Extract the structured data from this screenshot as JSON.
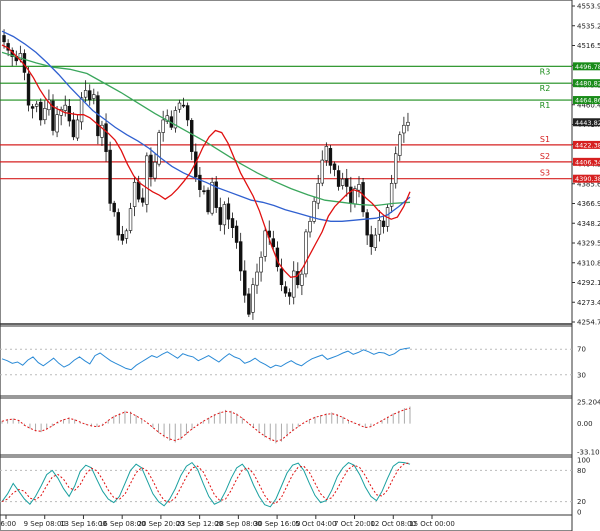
{
  "chart_data": {
    "type": "candlestick",
    "y_ticks": [
      "4553.90",
      "4535.20",
      "4516.50",
      "4497.80",
      "4479.10",
      "4460.40",
      "4441.70",
      "4423.00",
      "4404.30",
      "4385.60",
      "4366.90",
      "4348.20",
      "4329.50",
      "4310.80",
      "4292.10",
      "4273.40",
      "4254.70"
    ],
    "ylim": [
      4254.7,
      4553.9
    ],
    "x_ticks": [
      "16:00",
      "9 Sep 08:00",
      "13 Sep 16:00",
      "16 Sep 08:00",
      "20 Sep 20:00",
      "23 Sep 12:00",
      "28 Sep 08:00",
      "30 Sep 16:00",
      "5 Oct 04:00",
      "7 Oct 20:00",
      "12 Oct 08:00",
      "15 Oct 00:00"
    ],
    "last_price": {
      "value": 4443.82,
      "label": "4443.82"
    },
    "resistance": [
      {
        "name": "R3",
        "value": 4496.78,
        "label": "4496.78"
      },
      {
        "name": "R2",
        "value": 4480.82,
        "label": "4480.82"
      },
      {
        "name": "R1",
        "value": 4464.86,
        "label": "4464.86"
      }
    ],
    "support": [
      {
        "name": "S1",
        "value": 4422.38,
        "label": "4422.38"
      },
      {
        "name": "S2",
        "value": 4406.34,
        "label": "4406.34"
      },
      {
        "name": "S3",
        "value": 4390.38,
        "label": "4390.38"
      }
    ],
    "close_path": [
      4520,
      4512,
      4506,
      4502,
      4509,
      4491,
      4460,
      4457,
      4461,
      4446,
      4457,
      4465,
      4436,
      4451,
      4456,
      4460,
      4445,
      4430,
      4446,
      4467,
      4474,
      4465,
      4470,
      4431,
      4441,
      4416,
      4367,
      4359,
      4337,
      4332,
      4341,
      4362,
      4387,
      4371,
      4368,
      4412,
      4392,
      4406,
      4434,
      4446,
      4450,
      4439,
      4455,
      4462,
      4460,
      4446,
      4416,
      4392,
      4380,
      4378,
      4359,
      4387,
      4363,
      4347,
      4366,
      4352,
      4344,
      4330,
      4303,
      4280,
      4262,
      4290,
      4302,
      4316,
      4341,
      4335,
      4326,
      4307,
      4290,
      4282,
      4279,
      4303,
      4290,
      4300,
      4340,
      4350,
      4369,
      4386,
      4408,
      4421,
      4403,
      4399,
      4383,
      4390,
      4383,
      4367,
      4381,
      4385,
      4359,
      4337,
      4326,
      4337,
      4351,
      4345,
      4363,
      4386,
      4414,
      4432,
      4441,
      4443.82
    ],
    "sma_fast": [
      4517,
      4514,
      4508,
      4502,
      4495,
      4486,
      4475,
      4466,
      4459,
      4456,
      4453,
      4452,
      4451,
      4451,
      4448,
      4443,
      4438,
      4433,
      4427,
      4417,
      4404,
      4393,
      4386,
      4382,
      4378,
      4375,
      4371,
      4375,
      4381,
      4388,
      4396,
      4407,
      4420,
      4430,
      4436,
      4434,
      4424,
      4410,
      4396,
      4385,
      4374,
      4360,
      4343,
      4326,
      4311,
      4303,
      4297,
      4298,
      4307,
      4318,
      4329,
      4340,
      4355,
      4364,
      4370,
      4376,
      4380,
      4378,
      4372,
      4367,
      4360,
      4355,
      4352,
      4354,
      4364,
      4378
    ],
    "sma_mid": [
      4530,
      4525,
      4518,
      4510,
      4500,
      4489,
      4477,
      4466,
      4455,
      4447,
      4439,
      4432,
      4426,
      4419,
      4410,
      4402,
      4396,
      4391,
      4387,
      4382,
      4378,
      4374,
      4370,
      4368,
      4365,
      4361,
      4358,
      4355,
      4352,
      4350,
      4350,
      4351,
      4352,
      4353,
      4356,
      4364,
      4373
    ],
    "sma_slow": [
      4510,
      4505,
      4500,
      4496,
      4494,
      4490,
      4481,
      4472,
      4462,
      4452,
      4443,
      4434,
      4425,
      4415,
      4405,
      4396,
      4388,
      4381,
      4375,
      4370,
      4368,
      4366,
      4365,
      4367,
      4368
    ],
    "rsi": {
      "ticks": [
        "70",
        "30"
      ],
      "ylim": [
        0,
        100
      ],
      "values": [
        55,
        52,
        48,
        50,
        45,
        53,
        58,
        49,
        44,
        50,
        56,
        48,
        42,
        46,
        53,
        58,
        52,
        47,
        60,
        64,
        58,
        52,
        48,
        44,
        40,
        38,
        45,
        50,
        55,
        60,
        57,
        62,
        66,
        61,
        56,
        63,
        60,
        58,
        52,
        56,
        60,
        55,
        50,
        57,
        63,
        58,
        55,
        48,
        51,
        56,
        50,
        46,
        41,
        45,
        43,
        48,
        52,
        47,
        44,
        50,
        55,
        58,
        61,
        54,
        57,
        60,
        64,
        67,
        62,
        65,
        69,
        66,
        62,
        65,
        64,
        60,
        63,
        69,
        71,
        72
      ]
    },
    "oscillator": {
      "ticks": [
        "25.204",
        "0.00",
        "-33.105"
      ],
      "ylim": [
        -33.105,
        25.204
      ],
      "values": [
        3,
        5,
        6,
        4,
        -2,
        -6,
        -9,
        -10,
        -7,
        -3,
        2,
        5,
        7,
        5,
        2,
        -1,
        -3,
        -4,
        -2,
        4,
        9,
        12,
        15,
        14,
        10,
        6,
        1,
        -5,
        -11,
        -16,
        -20,
        -22,
        -19,
        -13,
        -7,
        -2,
        3,
        7,
        11,
        14,
        16,
        15,
        12,
        7,
        1,
        -5,
        -11,
        -16,
        -20,
        -23,
        -21,
        -15,
        -9,
        -4,
        1,
        5,
        8,
        10,
        12,
        13,
        11,
        8,
        4,
        1,
        -2,
        -5,
        -4,
        0,
        4,
        8,
        12,
        15,
        18,
        20
      ]
    },
    "stochastic": {
      "ticks": [
        "100",
        "80",
        "20",
        "0"
      ],
      "ylim": [
        0,
        100
      ],
      "values": [
        20,
        35,
        55,
        40,
        25,
        15,
        30,
        50,
        72,
        80,
        65,
        45,
        30,
        50,
        78,
        90,
        85,
        62,
        40,
        25,
        18,
        30,
        55,
        80,
        92,
        85,
        60,
        35,
        20,
        12,
        25,
        45,
        70,
        88,
        95,
        82,
        55,
        30,
        15,
        20,
        40,
        65,
        85,
        92,
        78,
        52,
        30,
        14,
        10,
        25,
        50,
        75,
        90,
        94,
        80,
        55,
        32,
        18,
        22,
        42,
        68,
        85,
        95,
        90,
        72,
        48,
        30,
        22,
        40,
        65,
        88,
        96,
        95,
        92
      ]
    }
  }
}
